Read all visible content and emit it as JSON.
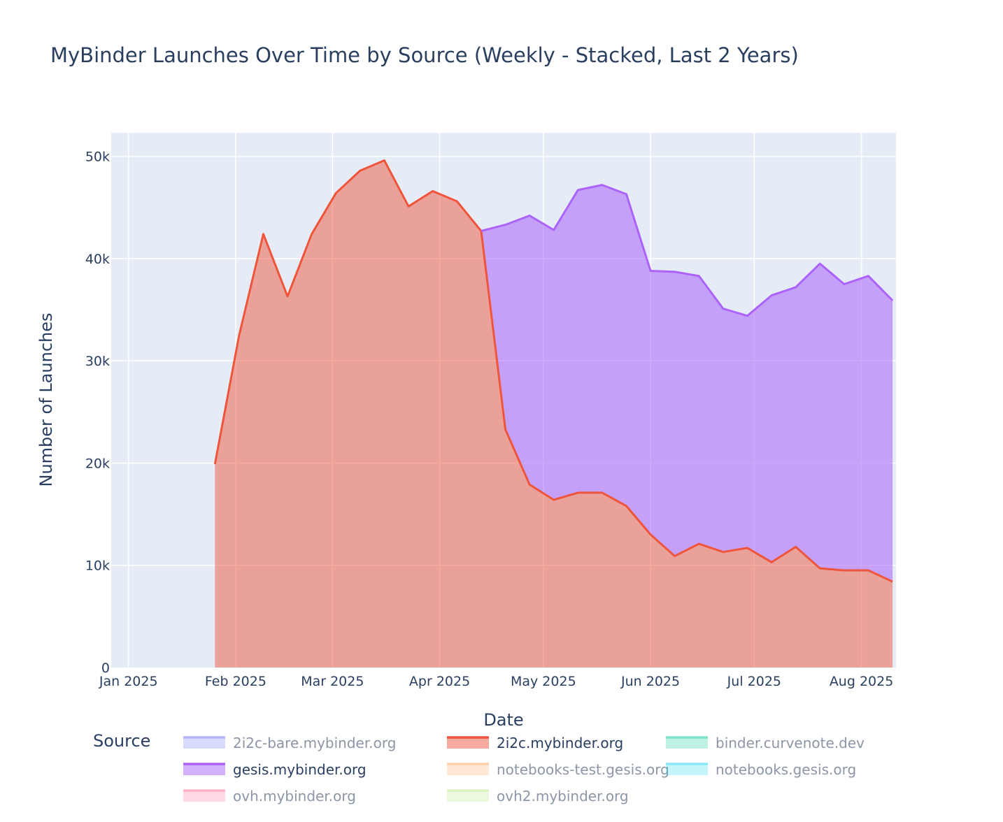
{
  "chart_data": {
    "type": "area",
    "stacked": true,
    "title": "MyBinder Launches Over Time by Source (Weekly - Stacked, Last 2 Years)",
    "xlabel": "Date",
    "ylabel": "Number of Launches",
    "y_ticks": [
      {
        "value": 0,
        "label": "0"
      },
      {
        "value": 10000,
        "label": "10k"
      },
      {
        "value": 20000,
        "label": "20k"
      },
      {
        "value": 30000,
        "label": "30k"
      },
      {
        "value": 40000,
        "label": "40k"
      },
      {
        "value": 50000,
        "label": "50k"
      }
    ],
    "ylim": [
      0,
      52300
    ],
    "xlim": [
      "2024-12-27",
      "2025-08-11"
    ],
    "x_ticks": [
      {
        "date": "2025-01-01",
        "label": "Jan 2025"
      },
      {
        "date": "2025-02-01",
        "label": "Feb 2025"
      },
      {
        "date": "2025-03-01",
        "label": "Mar 2025"
      },
      {
        "date": "2025-04-01",
        "label": "Apr 2025"
      },
      {
        "date": "2025-05-01",
        "label": "May 2025"
      },
      {
        "date": "2025-06-01",
        "label": "Jun 2025"
      },
      {
        "date": "2025-07-01",
        "label": "Jul 2025"
      },
      {
        "date": "2025-08-01",
        "label": "Aug 2025"
      }
    ],
    "dates": [
      "2025-01-26",
      "2025-02-02",
      "2025-02-09",
      "2025-02-16",
      "2025-02-23",
      "2025-03-02",
      "2025-03-09",
      "2025-03-16",
      "2025-03-23",
      "2025-03-30",
      "2025-04-06",
      "2025-04-13",
      "2025-04-20",
      "2025-04-27",
      "2025-05-04",
      "2025-05-11",
      "2025-05-18",
      "2025-05-25",
      "2025-06-01",
      "2025-06-08",
      "2025-06-15",
      "2025-06-22",
      "2025-06-29",
      "2025-07-06",
      "2025-07-13",
      "2025-07-20",
      "2025-07-27",
      "2025-08-03",
      "2025-08-10"
    ],
    "series": [
      {
        "name": "2i2c.mybinder.org",
        "color": "#EF553B",
        "visible": true,
        "values": [
          19900,
          32500,
          42400,
          36300,
          42400,
          46400,
          48600,
          49600,
          45100,
          46600,
          45600,
          42700,
          23300,
          17900,
          16400,
          17100,
          17100,
          15800,
          13000,
          10900,
          12100,
          11300,
          11700,
          10300,
          11800,
          9700,
          9500,
          9500,
          8400
        ]
      },
      {
        "name": "gesis.mybinder.org",
        "color": "#AB63FA",
        "visible": true,
        "values": [
          0,
          0,
          0,
          0,
          0,
          0,
          0,
          0,
          0,
          0,
          0,
          0,
          20000,
          26300,
          26400,
          29600,
          30100,
          30500,
          25800,
          27800,
          26200,
          23800,
          22700,
          26100,
          25400,
          29800,
          28000,
          28800,
          27500
        ]
      }
    ],
    "legend": {
      "title": "Source",
      "position": "bottom",
      "items": [
        {
          "name": "2i2c-bare.mybinder.org",
          "color": "#636EFA",
          "visible": false
        },
        {
          "name": "2i2c.mybinder.org",
          "color": "#EF553B",
          "visible": true
        },
        {
          "name": "binder.curvenote.dev",
          "color": "#00CC96",
          "visible": false
        },
        {
          "name": "gesis.mybinder.org",
          "color": "#AB63FA",
          "visible": true
        },
        {
          "name": "notebooks-test.gesis.org",
          "color": "#FFA15A",
          "visible": false
        },
        {
          "name": "notebooks.gesis.org",
          "color": "#19D3F3",
          "visible": false
        },
        {
          "name": "ovh.mybinder.org",
          "color": "#FF6692",
          "visible": false
        },
        {
          "name": "ovh2.mybinder.org",
          "color": "#B6E880",
          "visible": false
        }
      ]
    },
    "plot_bg": "#E5ECF6",
    "grid": true
  }
}
